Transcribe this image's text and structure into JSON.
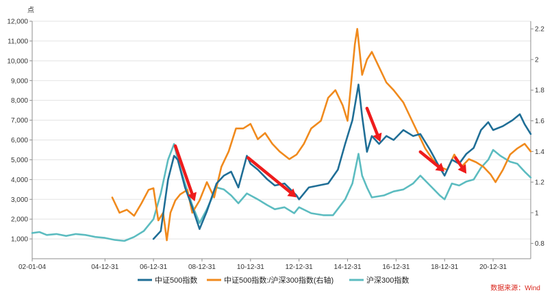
{
  "chart_data": {
    "type": "line",
    "y_unit_label": "点",
    "left_axis": {
      "min": 0,
      "max": 12000,
      "ticks": [
        "1,000",
        "2,000",
        "3,000",
        "4,000",
        "5,000",
        "6,000",
        "7,000",
        "8,000",
        "9,000",
        "10,000",
        "11,000",
        "12,000"
      ],
      "tick_values": [
        1000,
        2000,
        3000,
        4000,
        5000,
        6000,
        7000,
        8000,
        9000,
        10000,
        11000,
        12000
      ]
    },
    "right_axis": {
      "min": 0.7,
      "max": 2.25,
      "ticks": [
        "0.8",
        "1",
        "1.2",
        "1.4",
        "1.6",
        "1.8",
        "2",
        "2.2"
      ],
      "tick_values": [
        0.8,
        1.0,
        1.2,
        1.4,
        1.6,
        1.8,
        2.0,
        2.2
      ]
    },
    "x_range": [
      2002.0,
      2022.55
    ],
    "x_ticks": [
      {
        "label": "02-01-04",
        "t": 2002.0
      },
      {
        "label": "04-12-31",
        "t": 2005.0
      },
      {
        "label": "06-12-31",
        "t": 2007.0
      },
      {
        "label": "08-12-31",
        "t": 2009.0
      },
      {
        "label": "10-12-31",
        "t": 2011.0
      },
      {
        "label": "12-12-31",
        "t": 2013.0
      },
      {
        "label": "14-12-31",
        "t": 2015.0
      },
      {
        "label": "16-12-31",
        "t": 2017.0
      },
      {
        "label": "18-12-31",
        "t": 2019.0
      },
      {
        "label": "20-12-31",
        "t": 2021.0
      }
    ],
    "grid": "horizontal",
    "legend_position": "bottom",
    "series": [
      {
        "name": "中证500指数",
        "axis": "left",
        "color": "#1f6e96",
        "points": [
          [
            2007.0,
            1000
          ],
          [
            2007.3,
            1400
          ],
          [
            2007.6,
            4000
          ],
          [
            2007.85,
            5200
          ],
          [
            2008.0,
            5000
          ],
          [
            2008.3,
            3600
          ],
          [
            2008.6,
            2600
          ],
          [
            2008.9,
            1500
          ],
          [
            2009.2,
            2400
          ],
          [
            2009.6,
            3800
          ],
          [
            2009.9,
            4200
          ],
          [
            2010.2,
            4400
          ],
          [
            2010.5,
            3600
          ],
          [
            2010.85,
            5200
          ],
          [
            2011.0,
            4800
          ],
          [
            2011.3,
            4500
          ],
          [
            2011.7,
            4000
          ],
          [
            2012.0,
            3700
          ],
          [
            2012.4,
            3800
          ],
          [
            2012.9,
            3200
          ],
          [
            2013.0,
            3000
          ],
          [
            2013.4,
            3600
          ],
          [
            2013.8,
            3700
          ],
          [
            2014.2,
            3800
          ],
          [
            2014.6,
            4500
          ],
          [
            2014.9,
            5800
          ],
          [
            2015.2,
            7000
          ],
          [
            2015.45,
            8800
          ],
          [
            2015.6,
            7200
          ],
          [
            2015.8,
            5400
          ],
          [
            2016.0,
            6200
          ],
          [
            2016.3,
            5800
          ],
          [
            2016.6,
            6200
          ],
          [
            2016.9,
            6000
          ],
          [
            2017.3,
            6500
          ],
          [
            2017.7,
            6200
          ],
          [
            2018.0,
            6300
          ],
          [
            2018.4,
            5500
          ],
          [
            2018.8,
            4600
          ],
          [
            2019.0,
            4200
          ],
          [
            2019.3,
            5000
          ],
          [
            2019.6,
            4800
          ],
          [
            2019.9,
            5300
          ],
          [
            2020.2,
            5600
          ],
          [
            2020.5,
            6500
          ],
          [
            2020.8,
            6900
          ],
          [
            2021.0,
            6500
          ],
          [
            2021.4,
            6700
          ],
          [
            2021.8,
            7000
          ],
          [
            2022.1,
            7300
          ],
          [
            2022.3,
            6800
          ],
          [
            2022.55,
            6300
          ]
        ]
      },
      {
        "name": "中证500指数:/沪深300指数(右轴)",
        "axis": "right",
        "color": "#f08a1d",
        "points": [
          [
            2005.3,
            1.1
          ],
          [
            2005.6,
            1.0
          ],
          [
            2005.9,
            1.02
          ],
          [
            2006.2,
            0.98
          ],
          [
            2006.5,
            1.06
          ],
          [
            2006.8,
            1.15
          ],
          [
            2007.0,
            1.16
          ],
          [
            2007.2,
            0.95
          ],
          [
            2007.4,
            1.0
          ],
          [
            2007.55,
            0.82
          ],
          [
            2007.7,
            1.0
          ],
          [
            2007.9,
            1.08
          ],
          [
            2008.1,
            1.12
          ],
          [
            2008.4,
            1.15
          ],
          [
            2008.6,
            1.0
          ],
          [
            2008.9,
            1.08
          ],
          [
            2009.2,
            1.2
          ],
          [
            2009.5,
            1.1
          ],
          [
            2009.8,
            1.3
          ],
          [
            2010.1,
            1.4
          ],
          [
            2010.4,
            1.55
          ],
          [
            2010.7,
            1.55
          ],
          [
            2011.0,
            1.58
          ],
          [
            2011.3,
            1.48
          ],
          [
            2011.6,
            1.52
          ],
          [
            2011.9,
            1.45
          ],
          [
            2012.2,
            1.4
          ],
          [
            2012.6,
            1.35
          ],
          [
            2012.9,
            1.38
          ],
          [
            2013.2,
            1.45
          ],
          [
            2013.5,
            1.55
          ],
          [
            2013.9,
            1.6
          ],
          [
            2014.2,
            1.75
          ],
          [
            2014.5,
            1.8
          ],
          [
            2014.8,
            1.7
          ],
          [
            2015.0,
            1.6
          ],
          [
            2015.3,
            2.1
          ],
          [
            2015.4,
            2.2
          ],
          [
            2015.6,
            1.9
          ],
          [
            2015.8,
            2.0
          ],
          [
            2016.0,
            2.05
          ],
          [
            2016.3,
            1.95
          ],
          [
            2016.6,
            1.85
          ],
          [
            2016.9,
            1.8
          ],
          [
            2017.3,
            1.72
          ],
          [
            2017.6,
            1.62
          ],
          [
            2017.9,
            1.52
          ],
          [
            2018.2,
            1.42
          ],
          [
            2018.5,
            1.35
          ],
          [
            2018.8,
            1.3
          ],
          [
            2019.1,
            1.28
          ],
          [
            2019.4,
            1.38
          ],
          [
            2019.7,
            1.3
          ],
          [
            2020.0,
            1.35
          ],
          [
            2020.3,
            1.33
          ],
          [
            2020.6,
            1.3
          ],
          [
            2020.9,
            1.25
          ],
          [
            2021.1,
            1.2
          ],
          [
            2021.4,
            1.28
          ],
          [
            2021.7,
            1.38
          ],
          [
            2022.0,
            1.42
          ],
          [
            2022.3,
            1.45
          ],
          [
            2022.55,
            1.4
          ]
        ]
      },
      {
        "name": "沪深300指数",
        "axis": "left",
        "color": "#5cbcc0",
        "points": [
          [
            2002.0,
            1300
          ],
          [
            2002.3,
            1350
          ],
          [
            2002.6,
            1200
          ],
          [
            2003.0,
            1250
          ],
          [
            2003.4,
            1150
          ],
          [
            2003.8,
            1250
          ],
          [
            2004.2,
            1200
          ],
          [
            2004.6,
            1100
          ],
          [
            2005.0,
            1050
          ],
          [
            2005.4,
            950
          ],
          [
            2005.8,
            900
          ],
          [
            2006.2,
            1100
          ],
          [
            2006.6,
            1400
          ],
          [
            2007.0,
            2000
          ],
          [
            2007.3,
            3300
          ],
          [
            2007.6,
            5000
          ],
          [
            2007.85,
            5800
          ],
          [
            2008.0,
            5000
          ],
          [
            2008.3,
            3800
          ],
          [
            2008.6,
            2700
          ],
          [
            2008.9,
            1800
          ],
          [
            2009.2,
            2500
          ],
          [
            2009.6,
            3600
          ],
          [
            2009.9,
            3500
          ],
          [
            2010.2,
            3200
          ],
          [
            2010.5,
            2800
          ],
          [
            2010.85,
            3300
          ],
          [
            2011.0,
            3200
          ],
          [
            2011.3,
            3000
          ],
          [
            2011.7,
            2700
          ],
          [
            2012.0,
            2500
          ],
          [
            2012.4,
            2600
          ],
          [
            2012.8,
            2300
          ],
          [
            2013.0,
            2600
          ],
          [
            2013.5,
            2300
          ],
          [
            2014.0,
            2200
          ],
          [
            2014.4,
            2200
          ],
          [
            2014.9,
            3000
          ],
          [
            2015.2,
            3800
          ],
          [
            2015.45,
            5300
          ],
          [
            2015.6,
            4200
          ],
          [
            2015.8,
            3600
          ],
          [
            2016.0,
            3100
          ],
          [
            2016.5,
            3200
          ],
          [
            2016.9,
            3400
          ],
          [
            2017.3,
            3500
          ],
          [
            2017.7,
            3800
          ],
          [
            2018.0,
            4200
          ],
          [
            2018.4,
            3700
          ],
          [
            2018.8,
            3200
          ],
          [
            2019.0,
            3000
          ],
          [
            2019.3,
            3800
          ],
          [
            2019.6,
            3700
          ],
          [
            2019.9,
            3900
          ],
          [
            2020.2,
            4000
          ],
          [
            2020.5,
            4600
          ],
          [
            2020.8,
            5000
          ],
          [
            2021.0,
            5500
          ],
          [
            2021.3,
            5200
          ],
          [
            2021.7,
            4900
          ],
          [
            2022.0,
            4800
          ],
          [
            2022.3,
            4400
          ],
          [
            2022.55,
            4100
          ]
        ]
      }
    ],
    "annotation_arrows": [
      {
        "from": [
          2007.9,
          5700
        ],
        "to": [
          2008.7,
          2900
        ]
      },
      {
        "from": [
          2010.9,
          5100
        ],
        "to": [
          2012.9,
          3100
        ]
      },
      {
        "from": [
          2015.8,
          7600
        ],
        "to": [
          2016.35,
          5900
        ]
      },
      {
        "from": [
          2018.0,
          5400
        ],
        "to": [
          2019.0,
          4400
        ]
      },
      {
        "from": [
          2019.45,
          5100
        ],
        "to": [
          2019.9,
          4300
        ]
      }
    ],
    "source": "数据来源：Wind"
  }
}
